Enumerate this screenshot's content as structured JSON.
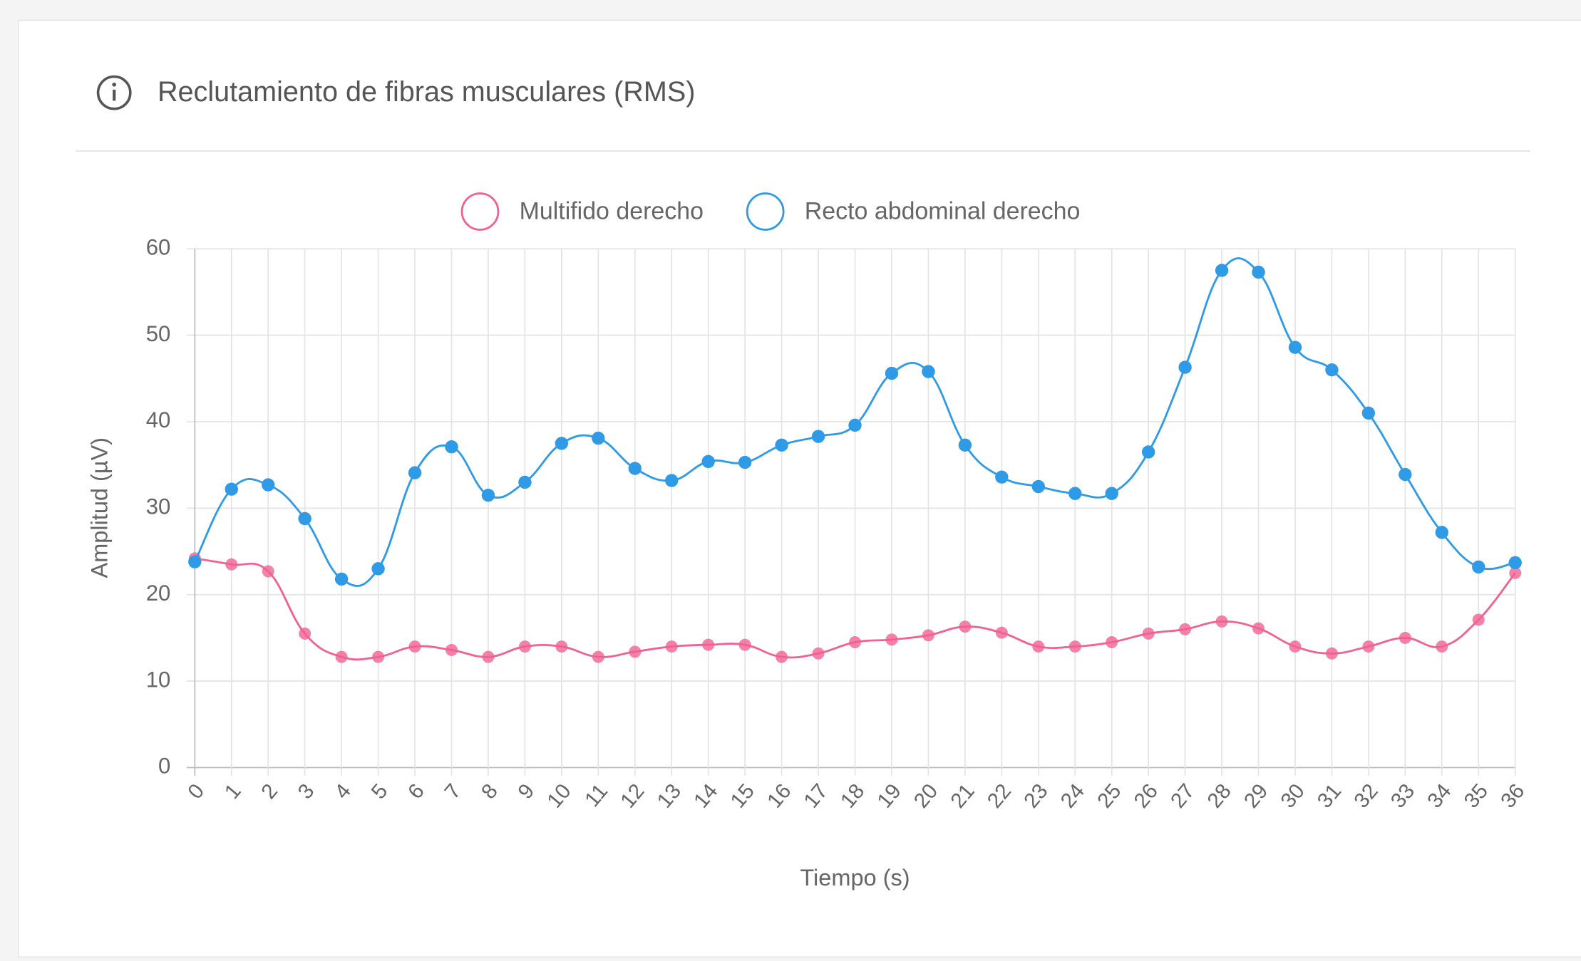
{
  "chart_data": {
    "type": "line",
    "title": "Reclutamiento de fibras musculares (RMS)",
    "x_label": "Tiempo (s)",
    "y_label": "Amplitud (µV)",
    "x": [
      0,
      1,
      2,
      3,
      4,
      5,
      6,
      7,
      8,
      9,
      10,
      11,
      12,
      13,
      14,
      15,
      16,
      17,
      18,
      19,
      20,
      21,
      22,
      23,
      24,
      25,
      26,
      27,
      28,
      29,
      30,
      31,
      32,
      33,
      34,
      35,
      36
    ],
    "xlim": [
      0,
      36
    ],
    "xticks": [
      0,
      1,
      2,
      3,
      4,
      5,
      6,
      7,
      8,
      9,
      10,
      11,
      12,
      13,
      14,
      15,
      16,
      17,
      18,
      19,
      20,
      21,
      22,
      23,
      24,
      25,
      26,
      27,
      28,
      29,
      30,
      31,
      32,
      33,
      34,
      35,
      36
    ],
    "ylim": [
      0,
      60
    ],
    "yticks": [
      0,
      10,
      20,
      30,
      40,
      50,
      60
    ],
    "grid": true,
    "legend": "top",
    "series": [
      {
        "name": "Multifido derecho",
        "color": "#f06292",
        "values": [
          24.2,
          23.5,
          22.7,
          15.5,
          12.8,
          12.8,
          14.0,
          13.6,
          12.8,
          14.0,
          14.0,
          12.8,
          13.4,
          14.0,
          14.2,
          14.2,
          12.8,
          13.2,
          14.5,
          14.8,
          15.3,
          16.3,
          15.6,
          14.0,
          14.0,
          14.5,
          15.5,
          16.0,
          16.9,
          16.1,
          14.0,
          13.2,
          14.0,
          15.0,
          14.0,
          17.1,
          22.5
        ]
      },
      {
        "name": "Recto abdominal derecho",
        "color": "#2f9be6",
        "values": [
          23.8,
          32.2,
          32.7,
          28.8,
          21.8,
          23.0,
          34.1,
          37.1,
          31.5,
          33.0,
          37.5,
          38.1,
          34.6,
          33.2,
          35.4,
          35.3,
          37.3,
          38.3,
          39.6,
          45.6,
          45.8,
          37.3,
          33.6,
          32.5,
          31.7,
          31.7,
          36.5,
          46.3,
          57.5,
          57.3,
          48.6,
          46.0,
          41.0,
          33.9,
          27.2,
          23.2,
          23.7
        ]
      }
    ]
  }
}
